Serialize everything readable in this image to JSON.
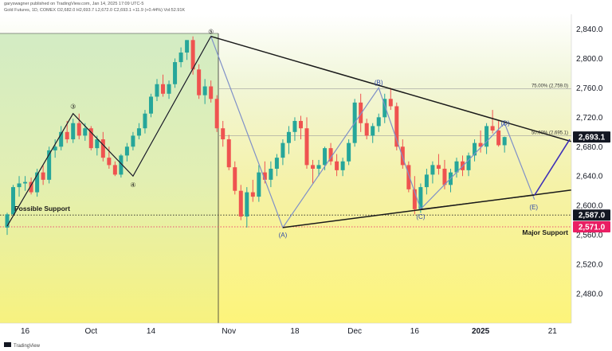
{
  "header": {
    "publisher": "garyswagner published on TradingView.com, Jan 14, 2025 17:09 UTC-5",
    "symbol": "Gold Futures, 1D, COMEX",
    "ohlc": "O2,682.0 H2,693.7 L2,672.0 C2,693.1 +11.9 (+0.44%) Vol:52.91K"
  },
  "footer": {
    "brand": "TradingView"
  },
  "colors": {
    "up": "#26a69a",
    "down": "#ef5350",
    "trendline": "#1a1a1a",
    "wave_path": "#7f90c8",
    "projection": "#3d2fb8",
    "price_tag": "#131722",
    "major_support_tag": "#e91e63",
    "bg_left": "#cfe9bd",
    "bg_right_top": "#e6f0c0",
    "bg_bottom": "#fbf48a"
  },
  "chart_data": {
    "type": "candlestick",
    "yticks": [
      "2,840.0",
      "2,800.0",
      "2,760.0",
      "2,720.0",
      "2,680.0",
      "2,640.0",
      "2,600.0",
      "2,560.0",
      "2,520.0",
      "2,480.0"
    ],
    "ytick_values": [
      2840,
      2800,
      2760,
      2720,
      2680,
      2640,
      2600,
      2560,
      2520,
      2480
    ],
    "ylim": [
      2440,
      2860
    ],
    "xticks": [
      {
        "label": "16",
        "index": 3
      },
      {
        "label": "Oct",
        "index": 14
      },
      {
        "label": "14",
        "index": 24
      },
      {
        "label": "Nov",
        "index": 37
      },
      {
        "label": "18",
        "index": 48
      },
      {
        "label": "Dec",
        "index": 58
      },
      {
        "label": "16",
        "index": 68
      },
      {
        "label": "2025",
        "index": 79
      },
      {
        "label": "21",
        "index": 91
      }
    ],
    "candles": [
      [
        2570,
        2590,
        2560,
        2588
      ],
      [
        2588,
        2628,
        2585,
        2625
      ],
      [
        2625,
        2640,
        2612,
        2630
      ],
      [
        2630,
        2640,
        2620,
        2632
      ],
      [
        2632,
        2638,
        2615,
        2618
      ],
      [
        2618,
        2650,
        2612,
        2645
      ],
      [
        2645,
        2655,
        2628,
        2635
      ],
      [
        2635,
        2680,
        2630,
        2675
      ],
      [
        2675,
        2690,
        2665,
        2680
      ],
      [
        2680,
        2708,
        2675,
        2700
      ],
      [
        2700,
        2715,
        2685,
        2690
      ],
      [
        2690,
        2718,
        2685,
        2712
      ],
      [
        2712,
        2725,
        2690,
        2695
      ],
      [
        2695,
        2712,
        2688,
        2705
      ],
      [
        2705,
        2708,
        2675,
        2678
      ],
      [
        2678,
        2695,
        2668,
        2690
      ],
      [
        2690,
        2700,
        2660,
        2665
      ],
      [
        2665,
        2680,
        2650,
        2655
      ],
      [
        2655,
        2660,
        2640,
        2642
      ],
      [
        2642,
        2670,
        2638,
        2668
      ],
      [
        2668,
        2685,
        2660,
        2680
      ],
      [
        2680,
        2700,
        2675,
        2695
      ],
      [
        2695,
        2712,
        2690,
        2705
      ],
      [
        2705,
        2730,
        2698,
        2725
      ],
      [
        2725,
        2752,
        2720,
        2748
      ],
      [
        2748,
        2772,
        2742,
        2765
      ],
      [
        2765,
        2778,
        2748,
        2752
      ],
      [
        2752,
        2770,
        2745,
        2765
      ],
      [
        2765,
        2800,
        2760,
        2795
      ],
      [
        2795,
        2815,
        2788,
        2808
      ],
      [
        2808,
        2825,
        2798,
        2825
      ],
      [
        2825,
        2830,
        2778,
        2785
      ],
      [
        2785,
        2792,
        2745,
        2750
      ],
      [
        2750,
        2772,
        2738,
        2762
      ],
      [
        2762,
        2770,
        2740,
        2745
      ],
      [
        2745,
        2750,
        2700,
        2705
      ],
      [
        2705,
        2715,
        2680,
        2690
      ],
      [
        2690,
        2696,
        2648,
        2652
      ],
      [
        2652,
        2660,
        2615,
        2620
      ],
      [
        2620,
        2628,
        2580,
        2585
      ],
      [
        2585,
        2625,
        2570,
        2618
      ],
      [
        2618,
        2635,
        2605,
        2612
      ],
      [
        2612,
        2655,
        2605,
        2645
      ],
      [
        2645,
        2660,
        2630,
        2635
      ],
      [
        2635,
        2660,
        2625,
        2650
      ],
      [
        2650,
        2670,
        2640,
        2665
      ],
      [
        2665,
        2690,
        2655,
        2685
      ],
      [
        2685,
        2708,
        2670,
        2700
      ],
      [
        2700,
        2720,
        2688,
        2715
      ],
      [
        2715,
        2722,
        2690,
        2705
      ],
      [
        2705,
        2720,
        2650,
        2655
      ],
      [
        2655,
        2662,
        2630,
        2650
      ],
      [
        2650,
        2662,
        2640,
        2655
      ],
      [
        2655,
        2680,
        2648,
        2678
      ],
      [
        2678,
        2685,
        2655,
        2660
      ],
      [
        2660,
        2670,
        2640,
        2648
      ],
      [
        2648,
        2665,
        2640,
        2660
      ],
      [
        2660,
        2690,
        2655,
        2685
      ],
      [
        2685,
        2745,
        2680,
        2740
      ],
      [
        2740,
        2752,
        2700,
        2712
      ],
      [
        2712,
        2718,
        2690,
        2695
      ],
      [
        2695,
        2712,
        2685,
        2708
      ],
      [
        2708,
        2725,
        2700,
        2720
      ],
      [
        2720,
        2752,
        2712,
        2745
      ],
      [
        2745,
        2760,
        2730,
        2735
      ],
      [
        2735,
        2740,
        2675,
        2680
      ],
      [
        2680,
        2690,
        2650,
        2655
      ],
      [
        2655,
        2660,
        2618,
        2622
      ],
      [
        2622,
        2640,
        2588,
        2595
      ],
      [
        2595,
        2630,
        2590,
        2625
      ],
      [
        2625,
        2650,
        2615,
        2642
      ],
      [
        2642,
        2660,
        2630,
        2655
      ],
      [
        2655,
        2670,
        2642,
        2650
      ],
      [
        2650,
        2662,
        2622,
        2628
      ],
      [
        2628,
        2650,
        2618,
        2645
      ],
      [
        2645,
        2665,
        2638,
        2660
      ],
      [
        2660,
        2668,
        2640,
        2648
      ],
      [
        2648,
        2672,
        2640,
        2668
      ],
      [
        2668,
        2690,
        2660,
        2685
      ],
      [
        2685,
        2702,
        2672,
        2680
      ],
      [
        2680,
        2712,
        2670,
        2708
      ],
      [
        2708,
        2730,
        2698,
        2702
      ],
      [
        2702,
        2715,
        2680,
        2682
      ],
      [
        2682,
        2693.7,
        2672,
        2693.1
      ]
    ],
    "levels": [
      {
        "price": 2759.0,
        "label": "75.00% (2,759.0)"
      },
      {
        "price": 2695.1,
        "label": "50.00% (2,695.1)"
      }
    ],
    "price_tags": [
      {
        "price": 2693.1,
        "label": "2,693.1",
        "kind": "last"
      },
      {
        "price": 2587.0,
        "label": "2,587.0",
        "kind": "support"
      },
      {
        "price": 2571.0,
        "label": "2,571.0",
        "kind": "major"
      }
    ],
    "annotations": {
      "possible_support": "Possible Support",
      "major_support": "Major Support",
      "waves": [
        "③",
        "④",
        "⑤",
        "(A)",
        "(B)",
        "(C)",
        "(D)",
        "(E)"
      ]
    }
  }
}
